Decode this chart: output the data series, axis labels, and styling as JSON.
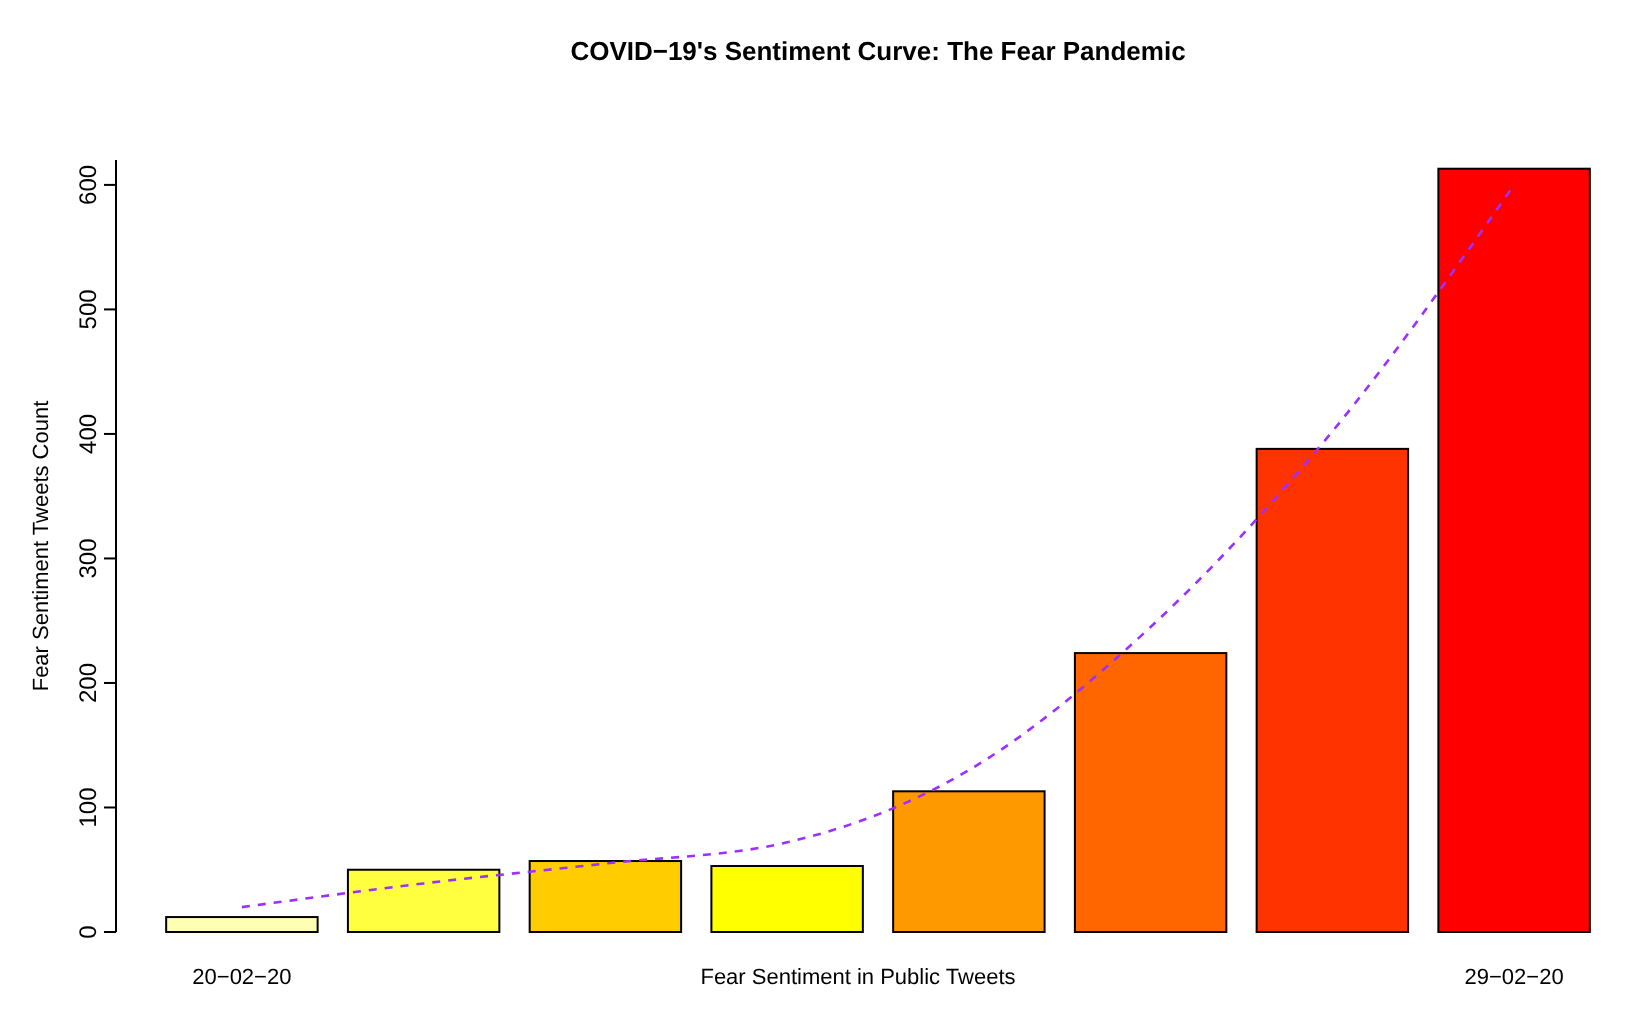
{
  "chart_data": {
    "type": "bar",
    "title": "COVID−19's Sentiment Curve: The Fear Pandemic",
    "xlabel": "Fear Sentiment in Public Tweets",
    "ylabel": "Fear Sentiment Tweets Count",
    "categories": [
      "20−02−20",
      null,
      null,
      null,
      null,
      null,
      null,
      "29−02−20"
    ],
    "ylim": [
      0,
      620
    ],
    "yticks": [
      0,
      100,
      200,
      300,
      400,
      500,
      600
    ],
    "grid": false,
    "series": [
      {
        "values": [
          12,
          50,
          57,
          53,
          113,
          224,
          388,
          613
        ],
        "colors": [
          "#ffffb3",
          "#ffff40",
          "#ffcc00",
          "#ffff00",
          "#ff9900",
          "#ff6600",
          "#ff3300",
          "#ff0000"
        ]
      },
      {
        "type": "line",
        "values": [
          20,
          39,
          55,
          72,
          130,
          245,
          402,
          600
        ],
        "color": "#9b30ff",
        "line_style": "dashed",
        "marker": "none"
      }
    ]
  }
}
